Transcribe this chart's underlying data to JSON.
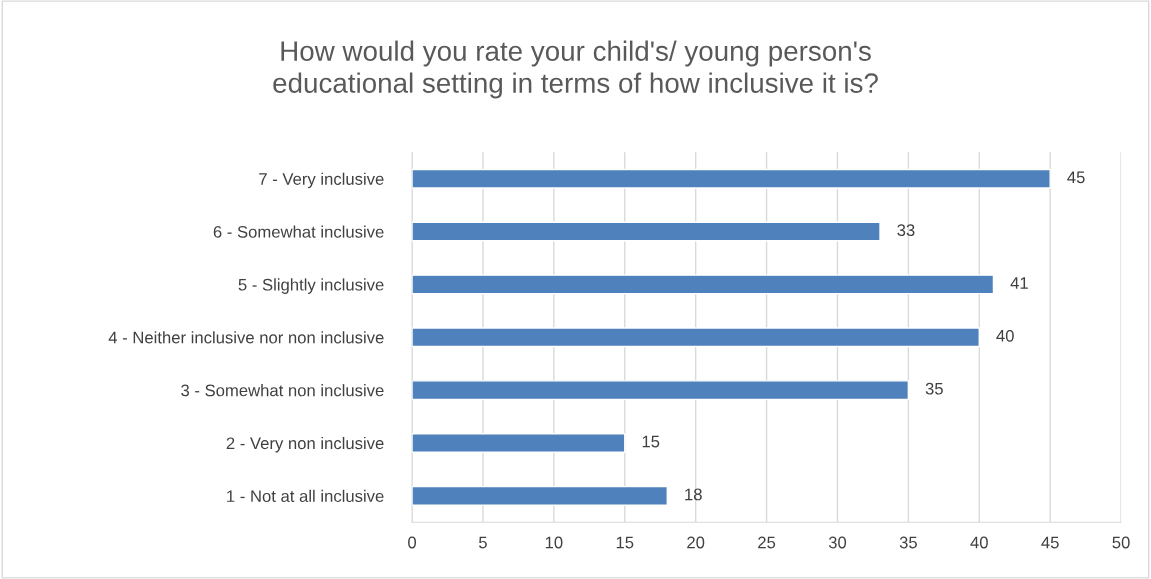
{
  "chart_data": {
    "type": "bar",
    "orientation": "horizontal",
    "title": "How would you rate your child's/ young person's\neducational setting in terms of how inclusive it is?",
    "categories": [
      "7 - Very inclusive",
      "6 - Somewhat inclusive",
      "5 - Slightly inclusive",
      "4 - Neither inclusive nor non inclusive",
      "3 - Somewhat non inclusive",
      "2 - Very non inclusive",
      "1 - Not at all inclusive"
    ],
    "values": [
      45,
      33,
      41,
      40,
      35,
      15,
      18
    ],
    "color": "#4f81bd",
    "xlim": [
      0,
      50
    ],
    "xticks": [
      0,
      5,
      10,
      15,
      20,
      25,
      30,
      35,
      40,
      45,
      50
    ],
    "grid": "x",
    "data_labels": true,
    "legend": false
  }
}
